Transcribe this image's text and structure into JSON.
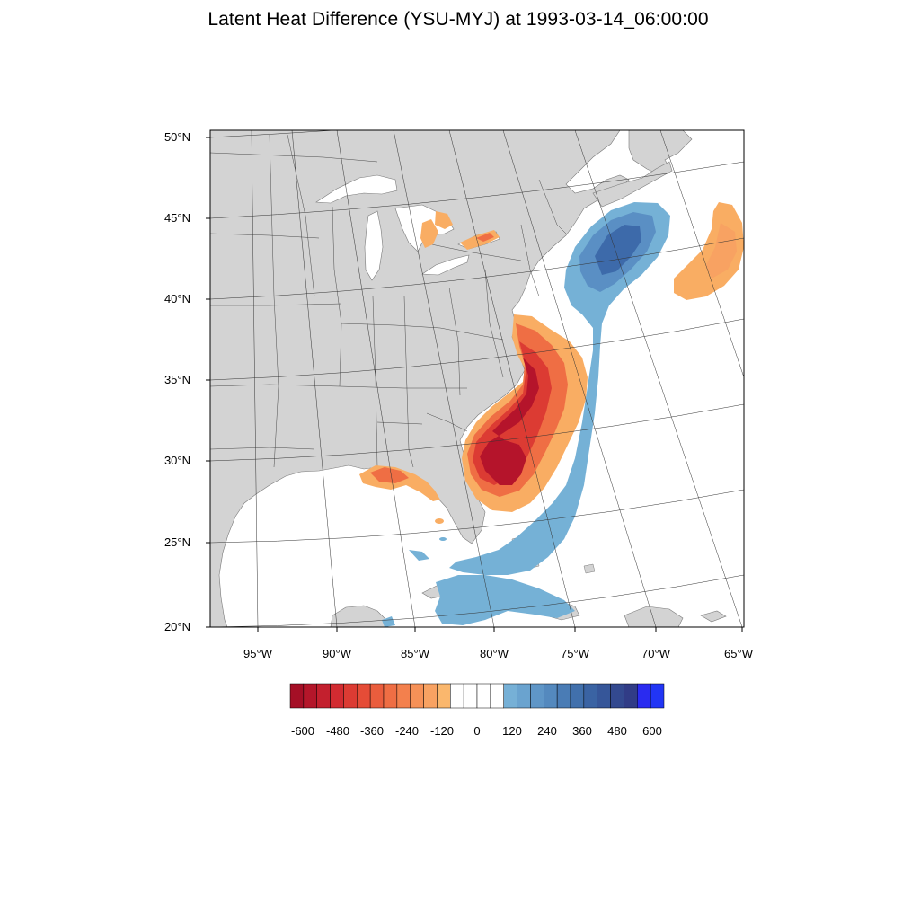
{
  "title": "Latent Heat Difference (YSU-MYJ) at 1993-03-14_06:00:00",
  "map": {
    "lat_labels": [
      "50°N",
      "45°N",
      "40°N",
      "35°N",
      "30°N",
      "25°N",
      "20°N"
    ],
    "lon_labels": [
      "95°W",
      "90°W",
      "85°W",
      "80°W",
      "75°W",
      "70°W",
      "65°W"
    ],
    "land_color": "#d3d3d3",
    "ocean_color": "#ffffff"
  },
  "colorbar": {
    "labels": [
      "-600",
      "-480",
      "-360",
      "-240",
      "-120",
      "0",
      "120",
      "240",
      "360",
      "480",
      "600"
    ],
    "colors": [
      "#a50f26",
      "#b4162a",
      "#c3202e",
      "#d22b31",
      "#dc3b33",
      "#e54c37",
      "#ea5d3d",
      "#ef6e44",
      "#f3804d",
      "#f69157",
      "#f8a262",
      "#fab76d",
      "#ffffff",
      "#ffffff",
      "#ffffff",
      "#ffffff",
      "#76b0d6",
      "#6aa3cf",
      "#5f96c7",
      "#5489be",
      "#4a7cb5",
      "#4170ac",
      "#3a63a3",
      "#365699",
      "#33498f",
      "#313c86",
      "#2a2bf0",
      "#2135f5"
    ]
  },
  "colors": {
    "warm_strong": "#b5142b",
    "warm_mid": "#e0503a",
    "warm_light": "#f9ad63",
    "cool_light": "#75b1d6",
    "cool_mid": "#5a8fc4",
    "cool_dark": "#3d6aaa"
  }
}
